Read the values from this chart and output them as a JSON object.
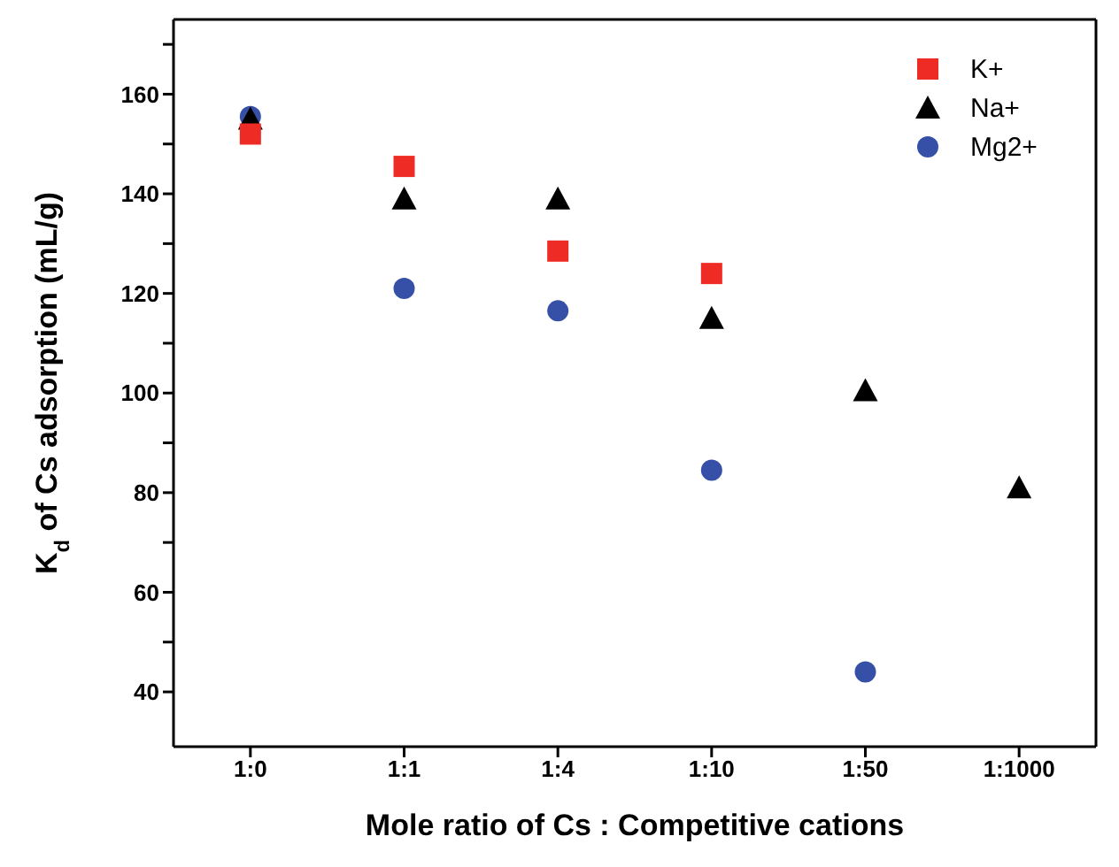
{
  "chart_data": {
    "type": "scatter",
    "xlabel": "Mole ratio of Cs : Competitive cations",
    "ylabel": "K$_{d}$ of Cs adsorption (mL/g)",
    "categories": [
      "1:0",
      "1:1",
      "1:4",
      "1:10",
      "1:50",
      "1:1000"
    ],
    "series": [
      {
        "name": "K+",
        "color": "#ee2b24",
        "marker": "square",
        "values": [
          152,
          145.5,
          128.5,
          124,
          null,
          null
        ]
      },
      {
        "name": "Na+",
        "color": "#000000",
        "marker": "triangle",
        "values": [
          155,
          139,
          139,
          115,
          100.5,
          81
        ]
      },
      {
        "name": "Mg2+",
        "color": "#3650a8",
        "marker": "circle",
        "values": [
          155.5,
          121,
          116.5,
          84.5,
          44,
          null
        ]
      }
    ],
    "ylim": [
      29,
      175
    ],
    "yticks": [
      40,
      {
        "value": 50,
        "label": null
      },
      60,
      {
        "value": 70,
        "label": null
      },
      80,
      {
        "value": 90,
        "label": null
      },
      100,
      {
        "value": 110,
        "label": null
      },
      120,
      {
        "value": 130,
        "label": null
      },
      140,
      {
        "value": 150,
        "label": null
      },
      160,
      {
        "value": 170,
        "label": null
      }
    ],
    "grid": false,
    "legend": "top right"
  }
}
